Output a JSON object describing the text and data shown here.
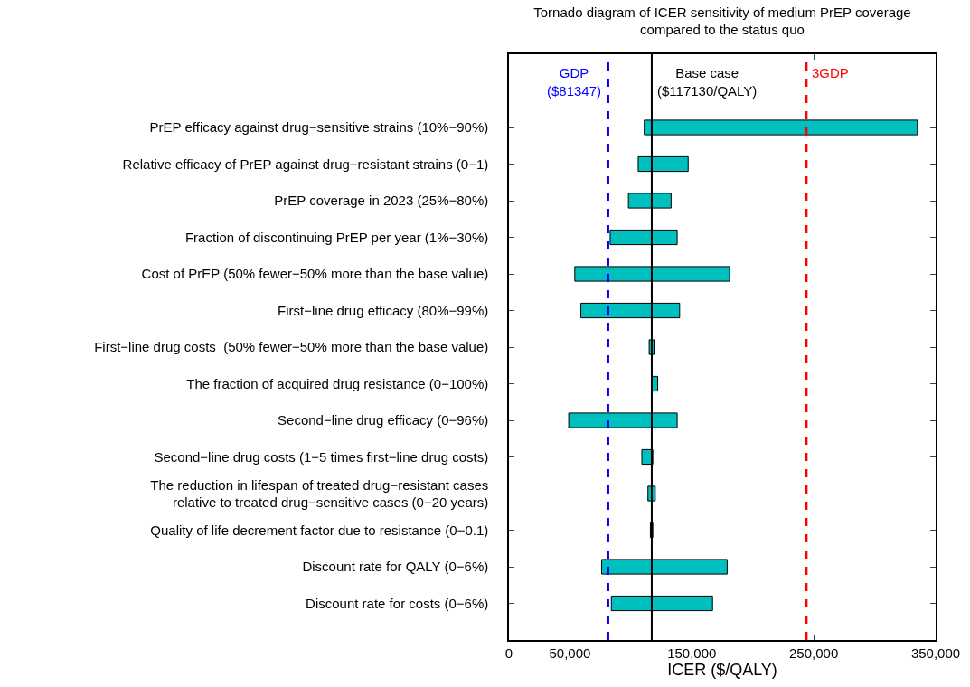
{
  "chart_data": {
    "type": "bar",
    "orientation": "horizontal",
    "title": "Tornado diagram of ICER sensitivity of medium PrEP coverage\ncompared to the status quo",
    "xlabel": "ICER ($/QALY)",
    "categories": [
      "PrEP efficacy against drug−sensitive strains (10%−90%)",
      "Relative efficacy of PrEP against drug−resistant strains (0−1)",
      "PrEP coverage in 2023 (25%−80%)",
      "Fraction of discontinuing PrEP per year (1%−30%)",
      "Cost of PrEP (50% fewer−50% more than the base value)",
      "First−line drug efficacy (80%−99%)",
      "First−line drug costs  (50% fewer−50% more than the base value)",
      "The fraction of acquired drug resistance (0−100%)",
      "Second−line drug efficacy (0−96%)",
      "Second−line drug costs (1−5 times first−line drug costs)",
      "The reduction in lifespan of treated drug−resistant cases\nrelative to treated drug−sensitive cases (0−20 years)",
      "Quality of life decrement factor due to resistance (0−0.1)",
      "Discount rate for QALY (0−6%)",
      "Discount rate for costs (0−6%)"
    ],
    "base": [
      111000,
      106000,
      98000,
      83000,
      54000,
      59000,
      115000,
      117000,
      49000,
      109000,
      114000,
      116000,
      76000,
      84000
    ],
    "values": [
      224000,
      41000,
      35000,
      55000,
      127000,
      81000,
      4000,
      5000,
      89000,
      9000,
      6000,
      2000,
      103000,
      83000
    ],
    "color": "#00bfbf",
    "xlim": [
      0,
      350000
    ],
    "xticks": [
      0,
      {
        "value": 50000,
        "label": "50,000"
      },
      {
        "value": 150000,
        "label": "150,000"
      },
      {
        "value": 250000,
        "label": "250,000"
      },
      {
        "value": 350000,
        "label": "350,000"
      }
    ],
    "ref_lines": [
      {
        "axis": "x",
        "value": 81347,
        "label": "GDP\n($81347)",
        "color": "#0000ff",
        "line_style": "dashed"
      },
      {
        "axis": "x",
        "value": 117130,
        "label": "Base case\n($117130/QALY)",
        "color": "#000000",
        "line_style": "solid"
      },
      {
        "axis": "x",
        "value": 244041,
        "label": "3GDP",
        "color": "#ff0000",
        "line_style": "dashed"
      }
    ],
    "legend": false
  }
}
